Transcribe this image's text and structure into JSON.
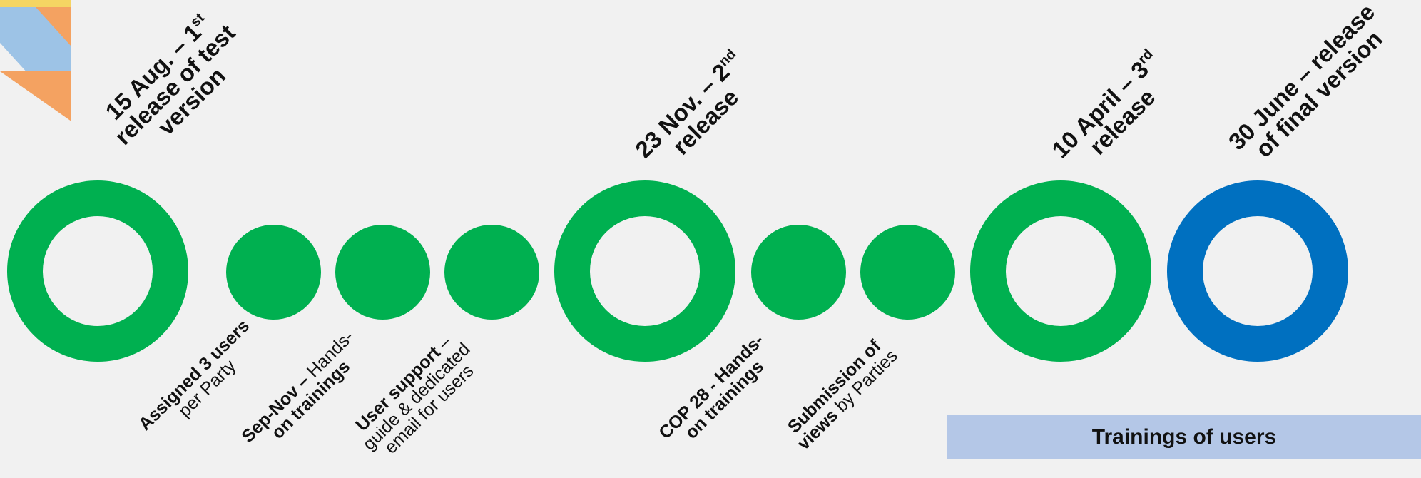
{
  "colors": {
    "green": "#00b050",
    "blue": "#0070c0",
    "banner": "#b4c7e7",
    "background": "#f1f1f1"
  },
  "milestones": [
    {
      "lines": [
        "15 Aug. – 1",
        "release of test",
        "version"
      ],
      "sup": "st"
    },
    {
      "lines": [
        "23 Nov. – 2",
        "release"
      ],
      "sup": "nd"
    },
    {
      "lines": [
        "10 April – 3",
        "release"
      ],
      "sup": "rd"
    },
    {
      "lines": [
        "30 June – release",
        "of final version"
      ]
    }
  ],
  "activities": [
    {
      "bold": "Assigned 3 users",
      "rest": "per Party"
    },
    {
      "bold_prefix": "Sep-Nov – ",
      "line1_rest": "Hands-",
      "line2_bold": "on trainings"
    },
    {
      "bold": "User support",
      "bold_suffix_plain": " –",
      "line2": "guide & dedicated",
      "line3": "email for users"
    },
    {
      "bold_a": "COP 28 - Hands-",
      "bold_b": "on trainings"
    },
    {
      "bold_a": "Submission of",
      "bold_b": "views",
      "rest_b": " by Parties"
    }
  ],
  "banner": {
    "label": "Trainings of users"
  }
}
